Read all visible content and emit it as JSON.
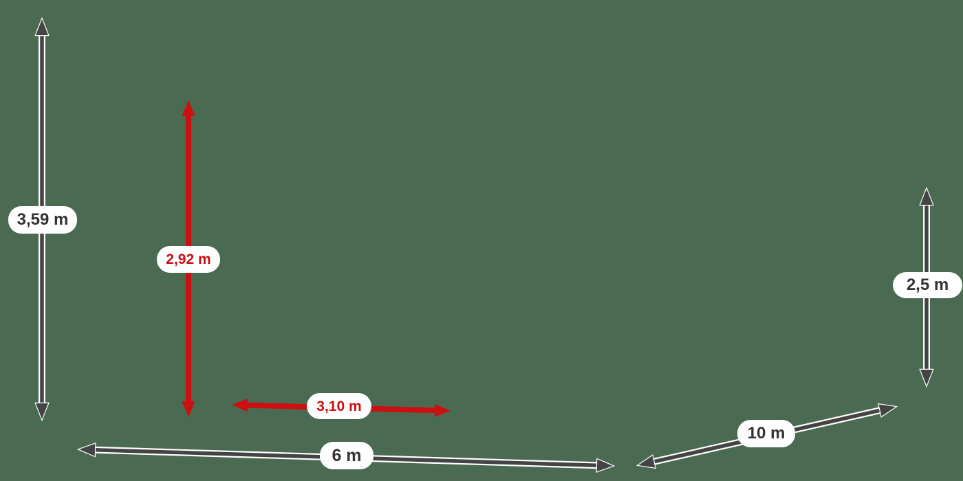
{
  "diagram": {
    "measurements": [
      {
        "id": "left-height",
        "label": "3,59 m",
        "color": "gray"
      },
      {
        "id": "inner-height",
        "label": "2,92 m",
        "color": "red"
      },
      {
        "id": "inner-width",
        "label": "3,10 m",
        "color": "red"
      },
      {
        "id": "bottom-width",
        "label": "6 m",
        "color": "gray"
      },
      {
        "id": "depth",
        "label": "10 m",
        "color": "gray"
      },
      {
        "id": "right-height",
        "label": "2,5 m",
        "color": "gray"
      }
    ]
  },
  "colors": {
    "background": "#4a6b51",
    "gray_arrow": "#444444",
    "red_arrow": "#cc0f10",
    "arrow_outline": "#ffffff",
    "label_background": "#ffffff",
    "label_text_dark": "#333333",
    "label_text_red": "#cc0f10"
  }
}
